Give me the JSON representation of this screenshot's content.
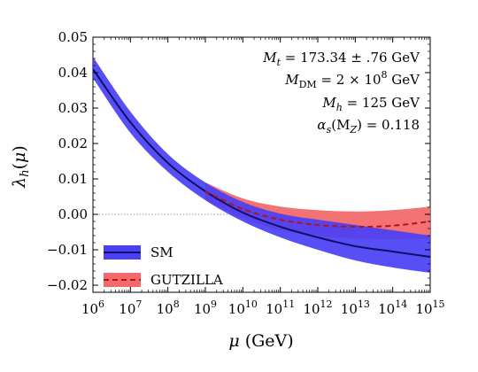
{
  "chart_data": {
    "type": "line",
    "title": "",
    "xlabel": "μ (GeV)",
    "ylabel": "λh(μ)",
    "x_scale": "log10",
    "xlim": [
      1000000.0,
      1000000000000000.0
    ],
    "ylim": [
      -0.022,
      0.05
    ],
    "x_ticks": [
      {
        "value": 1000000.0,
        "base": "10",
        "exp": "6"
      },
      {
        "value": 10000000.0,
        "base": "10",
        "exp": "7"
      },
      {
        "value": 100000000.0,
        "base": "10",
        "exp": "8"
      },
      {
        "value": 1000000000.0,
        "base": "10",
        "exp": "9"
      },
      {
        "value": 10000000000.0,
        "base": "10",
        "exp": "10"
      },
      {
        "value": 100000000000.0,
        "base": "10",
        "exp": "11"
      },
      {
        "value": 1000000000000.0,
        "base": "10",
        "exp": "12"
      },
      {
        "value": 10000000000000.0,
        "base": "10",
        "exp": "13"
      },
      {
        "value": 100000000000000.0,
        "base": "10",
        "exp": "14"
      },
      {
        "value": 1000000000000000.0,
        "base": "10",
        "exp": "15"
      }
    ],
    "y_ticks": [
      {
        "value": 0.05,
        "label": "0.05"
      },
      {
        "value": 0.04,
        "label": "0.04"
      },
      {
        "value": 0.03,
        "label": "0.03"
      },
      {
        "value": 0.02,
        "label": "0.02"
      },
      {
        "value": 0.01,
        "label": "0.01"
      },
      {
        "value": 0.0,
        "label": "0.00"
      },
      {
        "value": -0.01,
        "label": "−0.01"
      },
      {
        "value": -0.02,
        "label": "−0.02"
      }
    ],
    "reference_line": {
      "y": 0.0,
      "style": "dotted",
      "color": "#999999"
    },
    "series": [
      {
        "name": "SM",
        "line_color": "#10106a",
        "band_color": "#4a3ff5",
        "line_style": "solid",
        "x": [
          1000000.0,
          10000000.0,
          100000000.0,
          1000000000.0,
          10000000000.0,
          100000000000.0,
          1000000000000.0,
          10000000000000.0,
          100000000000000.0,
          1000000000000000.0
        ],
        "y": [
          0.041,
          0.026,
          0.0145,
          0.0065,
          0.0005,
          -0.0035,
          -0.0065,
          -0.009,
          -0.0105,
          -0.012
        ],
        "y_upper": [
          0.0445,
          0.029,
          0.017,
          0.009,
          0.0035,
          0.0002,
          -0.0015,
          -0.003,
          -0.0045,
          -0.006
        ],
        "y_lower": [
          0.0385,
          0.023,
          0.012,
          0.004,
          -0.002,
          -0.0065,
          -0.01,
          -0.013,
          -0.015,
          -0.0165
        ]
      },
      {
        "name": "GUTZILLA",
        "line_color": "#b3141c",
        "band_color": "#f26a6c",
        "line_style": "dashed",
        "x": [
          1000000000.0,
          10000000000.0,
          100000000000.0,
          1000000000000.0,
          10000000000000.0,
          100000000000000.0,
          1000000000000000.0
        ],
        "y": [
          0.0065,
          0.0015,
          -0.0015,
          -0.003,
          -0.0035,
          -0.0032,
          -0.002
        ],
        "y_upper": [
          0.009,
          0.0045,
          0.0022,
          0.0012,
          0.0008,
          0.0012,
          0.0022
        ],
        "y_lower": [
          0.004,
          -0.001,
          -0.0045,
          -0.006,
          -0.0068,
          -0.007,
          -0.0068
        ]
      }
    ],
    "legend": {
      "placement": "lower-left",
      "entries": [
        "SM",
        "GUTZILLA"
      ]
    },
    "annotations": [
      {
        "math": "M",
        "sub": "t",
        "rest": " = 173.34 ± .76 GeV"
      },
      {
        "math": "M",
        "sub": "DM",
        "rest": " = 2 × 10",
        "sup": "8",
        "tail": " GeV"
      },
      {
        "math": "M",
        "sub": "h",
        "rest": " = 125 GeV"
      },
      {
        "math": "α",
        "sub": "s",
        "rest": "(M",
        "sub2": "Z",
        "tail": ") = 0.118"
      }
    ]
  }
}
